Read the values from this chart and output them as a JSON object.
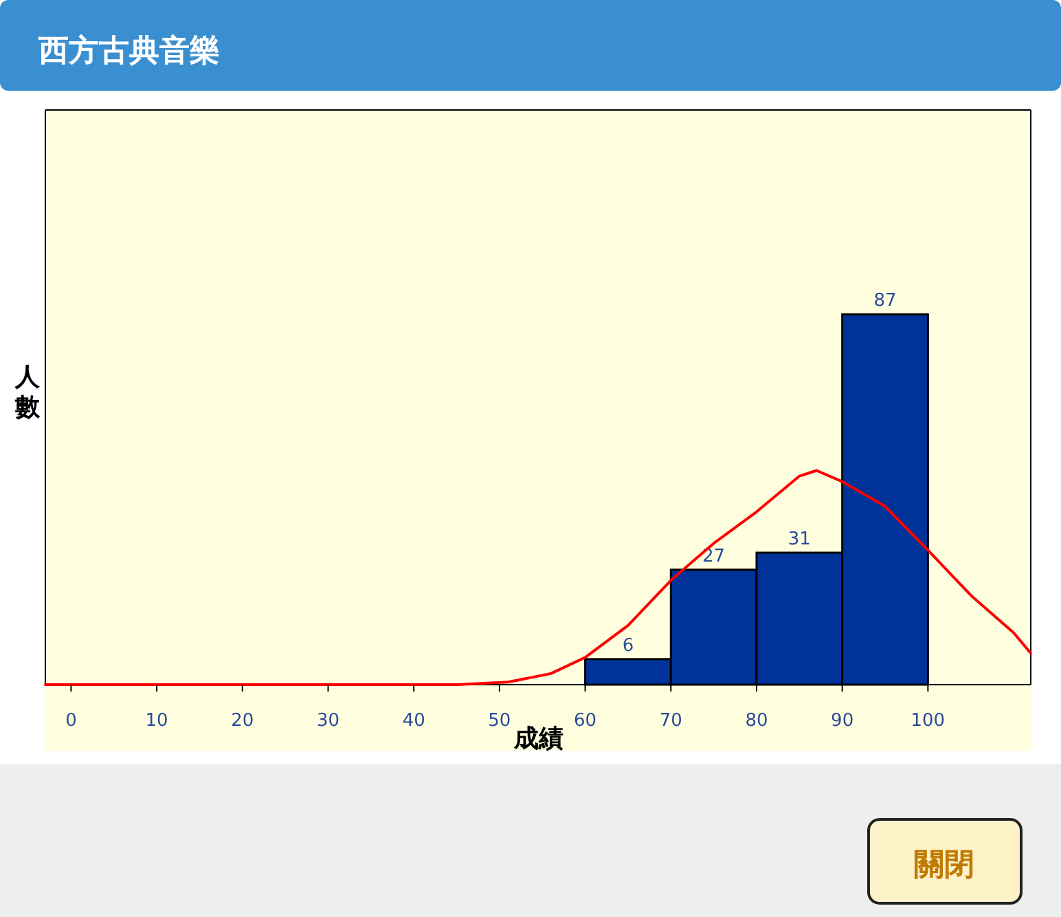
{
  "chart_data": {
    "type": "histogram",
    "title": "西方古典音樂",
    "xlabel": "成績",
    "ylabel": "人數",
    "xlim": [
      -3,
      112
    ],
    "ylim": [
      0,
      135
    ],
    "xticks": [
      0,
      10,
      20,
      30,
      40,
      50,
      60,
      70,
      80,
      90,
      100
    ],
    "grid": false,
    "series": [
      {
        "type": "histogram",
        "color": "#003399",
        "bins": [
          60,
          70,
          80,
          90,
          100
        ],
        "values": [
          6,
          27,
          31,
          87
        ],
        "value_labels": [
          "6",
          "27",
          "31",
          "87"
        ]
      },
      {
        "type": "line",
        "color": "#ff0000",
        "x": [
          -3,
          45,
          51,
          56,
          60,
          65,
          70,
          75,
          80,
          85,
          87,
          90,
          95,
          100,
          105,
          110,
          112
        ],
        "values": [
          0,
          0,
          0.6,
          2.6,
          6.4,
          13.9,
          24.5,
          33.2,
          40.6,
          49,
          50.3,
          47.7,
          41.9,
          31.6,
          21,
          12.2,
          7.4
        ]
      }
    ],
    "annotations": [
      "關閉"
    ]
  }
}
